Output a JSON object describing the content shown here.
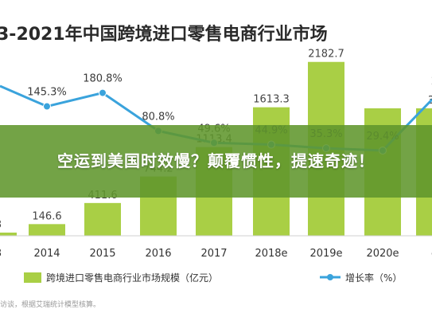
{
  "chart_data": {
    "type": "bar",
    "title": "3-2021年中国跨境进口零售电商行业市场",
    "categories": [
      "3",
      "2014",
      "2015",
      "2016",
      "2017",
      "2018e",
      "2019e",
      "2020e",
      "e"
    ],
    "series": [
      {
        "name": "跨境进口零售电商行业市场规模（亿元）",
        "type": "bar",
        "values": [
          null,
          146.6,
          411.6,
          744.2,
          1113.4,
          1613.3,
          2182.7,
          null,
          null
        ],
        "labels": [
          "3",
          "146.6",
          "411.6",
          "744.2",
          "1113.4",
          "1613.3",
          "2182.7",
          "",
          "35"
        ]
      },
      {
        "name": "增长率（%）",
        "type": "line",
        "values": [
          null,
          145.3,
          180.8,
          80.8,
          49.6,
          44.9,
          35.3,
          29.4,
          null
        ],
        "labels": [
          "",
          "145.3%",
          "180.8%",
          "80.8%",
          "49.6%",
          "44.9%",
          "35.3%",
          "29.4%",
          "2"
        ]
      }
    ],
    "colors": {
      "bar": "#a9cf45",
      "line": "#3aa3dc",
      "marker": "#3aa3dc"
    }
  },
  "overlay": {
    "text": "空运到美国时效慢？颠覆惯性，提速奇迹！"
  },
  "source_note": "访谈，根据艾瑞统计模型核算。"
}
